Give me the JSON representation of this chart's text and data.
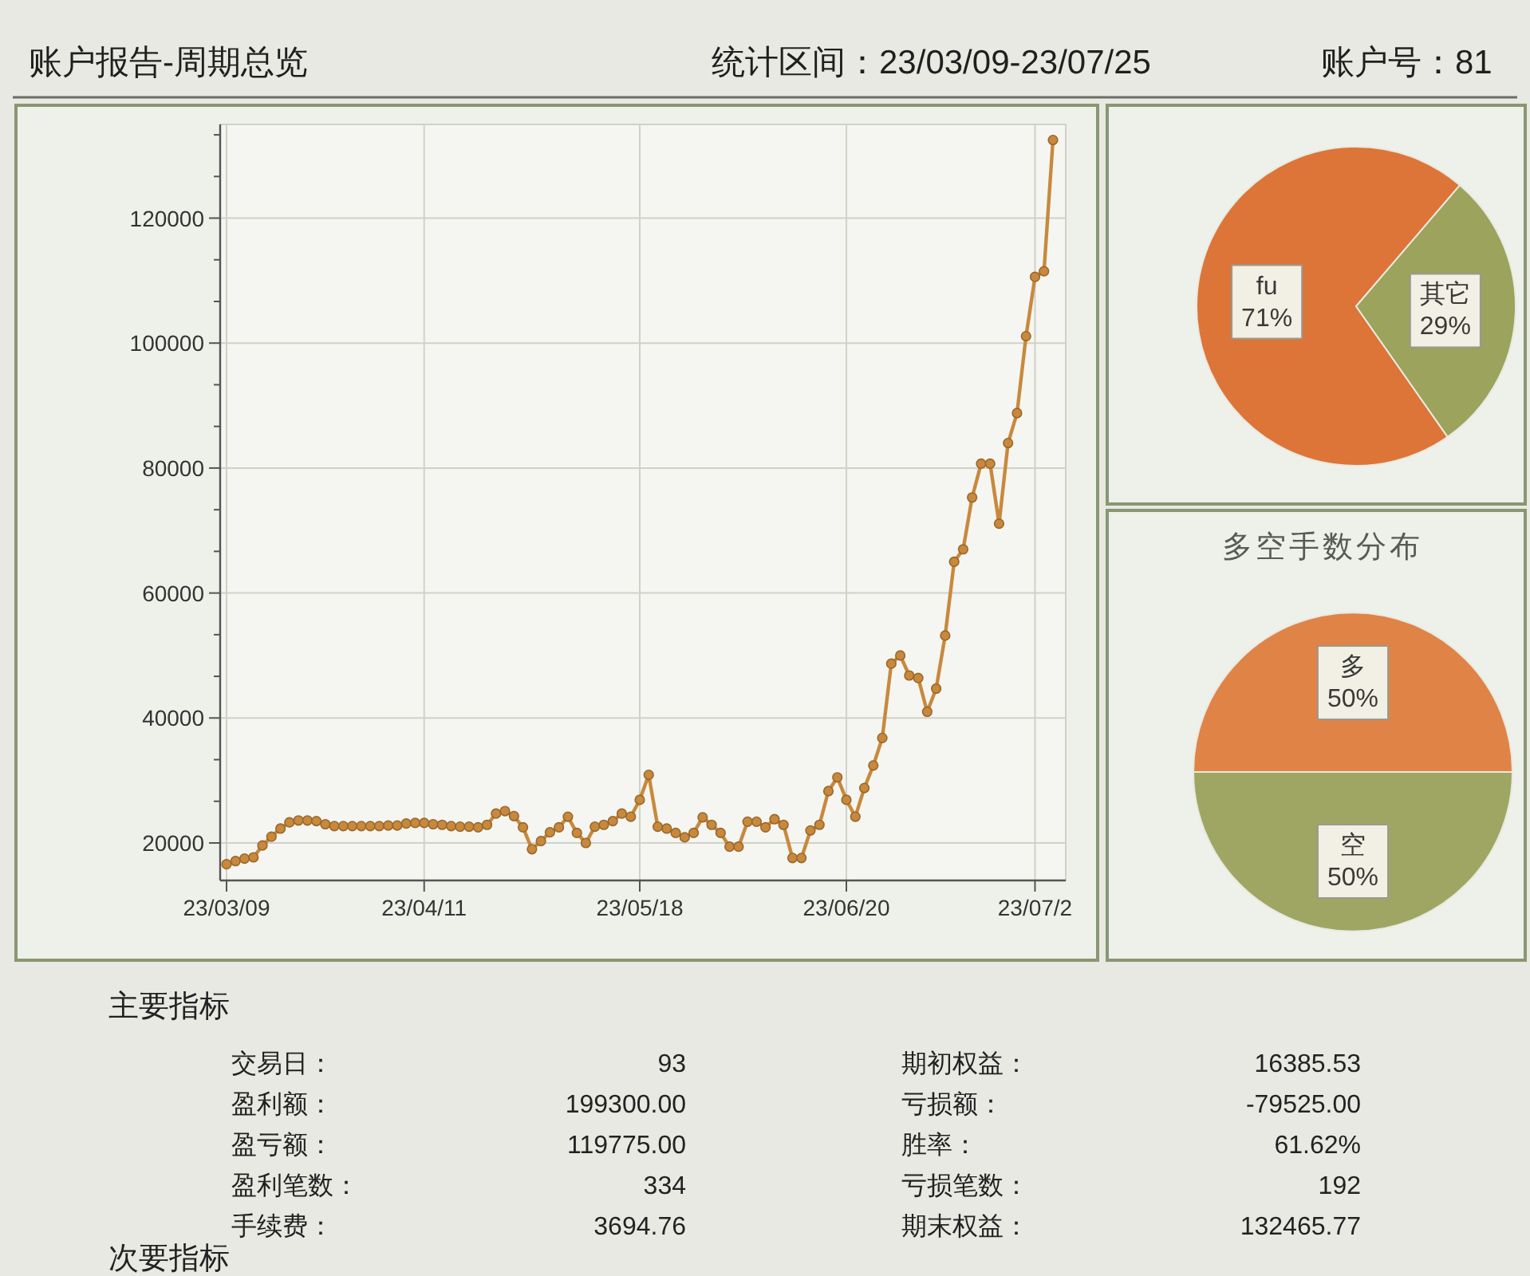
{
  "chart_data": [
    {
      "type": "line",
      "title": "账户报告-周期总览",
      "subtitle": "统计区间：23/03/09-23/07/25",
      "annotations": [
        "账户号：81"
      ],
      "categories": [
        "23/03/09",
        null,
        null,
        null,
        null,
        null,
        null,
        null,
        null,
        null,
        null,
        null,
        null,
        null,
        null,
        null,
        null,
        null,
        null,
        null,
        null,
        null,
        "23/04/11",
        null,
        null,
        null,
        null,
        null,
        null,
        null,
        null,
        null,
        null,
        null,
        null,
        null,
        null,
        null,
        null,
        null,
        null,
        null,
        null,
        null,
        null,
        null,
        "23/05/18",
        null,
        null,
        null,
        null,
        null,
        null,
        null,
        null,
        null,
        null,
        null,
        null,
        null,
        null,
        null,
        null,
        null,
        null,
        null,
        null,
        null,
        null,
        "23/06/20",
        null,
        null,
        null,
        null,
        null,
        null,
        null,
        null,
        null,
        null,
        null,
        null,
        null,
        null,
        null,
        null,
        null,
        null,
        null,
        null,
        "23/07/2",
        null,
        null
      ],
      "series": [
        {
          "color": "#c8893d",
          "values": [
            16600,
            17100,
            17500,
            17700,
            19600,
            21000,
            22300,
            23300,
            23600,
            23600,
            23500,
            23000,
            22700,
            22700,
            22700,
            22700,
            22700,
            22700,
            22800,
            22800,
            23100,
            23200,
            23200,
            23000,
            22900,
            22700,
            22600,
            22600,
            22500,
            22900,
            24700,
            25100,
            24300,
            22500,
            19000,
            20300,
            21700,
            22500,
            24200,
            21600,
            20000,
            22600,
            22900,
            23500,
            24700,
            24200,
            26900,
            30900,
            22600,
            22300,
            21600,
            20900,
            21600,
            24100,
            22900,
            21600,
            19400,
            19400,
            23400,
            23400,
            22500,
            23800,
            22900,
            17600,
            17600,
            22000,
            22900,
            28300,
            30500,
            26900,
            24200,
            28800,
            32400,
            36800,
            48700,
            50000,
            46800,
            46400,
            41000,
            44700,
            53200,
            65000,
            67000,
            75300,
            80700,
            80700,
            71100,
            84000,
            88800,
            101100,
            110600,
            111500,
            132500
          ]
        }
      ],
      "ylim": [
        14000,
        135000
      ],
      "yticks": [
        20000,
        {
          "value": 26667,
          "label": null
        },
        {
          "value": 33333,
          "label": null
        },
        40000,
        {
          "value": 46667,
          "label": null
        },
        {
          "value": 53333,
          "label": null
        },
        60000,
        {
          "value": 66667,
          "label": null
        },
        {
          "value": 73333,
          "label": null
        },
        80000,
        {
          "value": 86667,
          "label": null
        },
        {
          "value": 93333,
          "label": null
        },
        100000,
        {
          "value": 106667,
          "label": null
        },
        {
          "value": 113333,
          "label": null
        },
        120000,
        {
          "value": 126667,
          "label": null
        },
        {
          "value": 133333,
          "label": null
        }
      ],
      "grid": true,
      "marker": "circle",
      "line_style": "solid"
    },
    {
      "type": "pie",
      "categories": [
        "fu",
        "其它"
      ],
      "values": [
        71,
        29
      ],
      "value_labels": [
        "71%",
        "29%"
      ],
      "colors": [
        "#dd7438",
        "#9ba35c"
      ]
    },
    {
      "type": "pie",
      "title": "多空手数分布",
      "categories": [
        "多",
        "空"
      ],
      "values": [
        50,
        50
      ],
      "value_labels": [
        "50%",
        "50%"
      ],
      "colors": [
        "#e08347",
        "#9fa663"
      ]
    },
    {
      "type": "other",
      "title": "主要指标",
      "annotations": [
        "交易日：",
        "93",
        "期初权益：",
        "16385.53",
        "盈利额：",
        "199300.00",
        "亏损额：",
        "-79525.00",
        "盈亏额：",
        "119775.00",
        "胜率：",
        "61.62%",
        "盈利笔数：",
        "334",
        "亏损笔数：",
        "192",
        "手续费：",
        "3694.76",
        "期末权益：",
        "132465.77"
      ]
    },
    {
      "type": "other",
      "title": "次要指标"
    }
  ]
}
